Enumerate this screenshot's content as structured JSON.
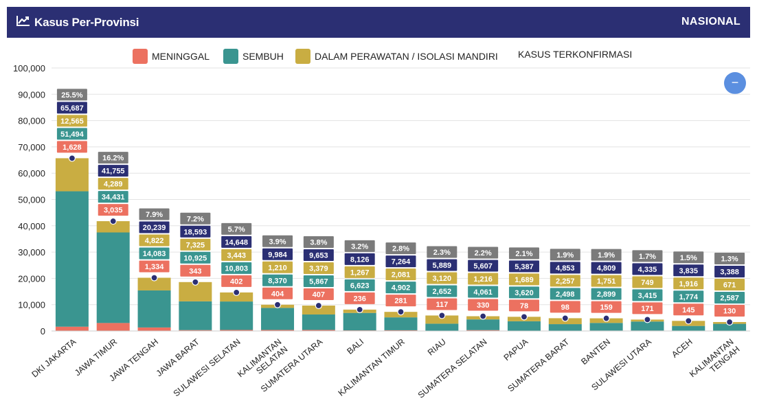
{
  "header": {
    "title": "Kasus Per-Provinsi",
    "region": "NASIONAL"
  },
  "colors": {
    "header_bg": "#2b2f73",
    "meninggal": "#ec7160",
    "sembuh": "#3a9590",
    "perawatan": "#c9ad42",
    "konfirmasi": "#2b2f73",
    "percent": "#7b7b7b",
    "collapse_button": "#5b8fe0"
  },
  "legend": [
    {
      "key": "meninggal",
      "label": "MENINGGAL"
    },
    {
      "key": "sembuh",
      "label": "SEMBUH"
    },
    {
      "key": "perawatan",
      "label": "DALAM PERAWATAN / ISOLASI MANDIRI"
    },
    {
      "key": "konfirmasi",
      "label": "KASUS TERKONFIRMASI"
    }
  ],
  "collapse_symbol": "−",
  "chart_data": {
    "type": "bar",
    "stacked": true,
    "ylim": [
      0,
      100000
    ],
    "yticks": [
      "0",
      "10,000",
      "20,000",
      "30,000",
      "40,000",
      "50,000",
      "60,000",
      "70,000",
      "80,000",
      "90,000",
      "100,000"
    ],
    "ytick_values": [
      0,
      10000,
      20000,
      30000,
      40000,
      50000,
      60000,
      70000,
      80000,
      90000,
      100000
    ],
    "grid": true,
    "legend_position": "top",
    "categories": [
      [
        "DKI JAKARTA"
      ],
      [
        "JAWA TIMUR"
      ],
      [
        "JAWA TENGAH"
      ],
      [
        "JAWA BARAT"
      ],
      [
        "SULAWESI SELATAN"
      ],
      [
        "KALIMANTAN",
        "SELATAN"
      ],
      [
        "SUMATERA UTARA"
      ],
      [
        "BALI"
      ],
      [
        "KALIMANTAN TIMUR"
      ],
      [
        "RIAU"
      ],
      [
        "SUMATERA SELATAN"
      ],
      [
        "PAPUA"
      ],
      [
        "SUMATERA BARAT"
      ],
      [
        "BANTEN"
      ],
      [
        "SULAWESI UTARA"
      ],
      [
        "ACEH"
      ],
      [
        "KALIMANTAN",
        "TENGAH"
      ]
    ],
    "series": [
      {
        "key": "meninggal",
        "name": "MENINGGAL",
        "values": [
          1628,
          3035,
          1334,
          343,
          402,
          404,
          407,
          236,
          281,
          117,
          330,
          78,
          98,
          159,
          171,
          145,
          130
        ]
      },
      {
        "key": "sembuh",
        "name": "SEMBUH",
        "values": [
          51494,
          34431,
          14083,
          10925,
          10803,
          8370,
          5867,
          6623,
          4902,
          2652,
          4061,
          3620,
          2498,
          2899,
          3415,
          1774,
          2587
        ]
      },
      {
        "key": "perawatan",
        "name": "DALAM PERAWATAN / ISOLASI MANDIRI",
        "values": [
          12565,
          4289,
          4822,
          7325,
          3443,
          1210,
          3379,
          1267,
          2081,
          3120,
          1216,
          1689,
          2257,
          1751,
          749,
          1916,
          671
        ]
      }
    ],
    "confirmed": {
      "name": "KASUS TERKONFIRMASI",
      "values": [
        65687,
        41755,
        20239,
        18593,
        14648,
        9984,
        9653,
        8126,
        7264,
        5889,
        5607,
        5387,
        4853,
        4809,
        4335,
        3835,
        3388
      ]
    },
    "percent_labels": [
      "25.5%",
      "16.2%",
      "7.9%",
      "7.2%",
      "5.7%",
      "3.9%",
      "3.8%",
      "3.2%",
      "2.8%",
      "2.3%",
      "2.2%",
      "2.1%",
      "1.9%",
      "1.9%",
      "1.7%",
      "1.5%",
      "1.3%"
    ]
  }
}
